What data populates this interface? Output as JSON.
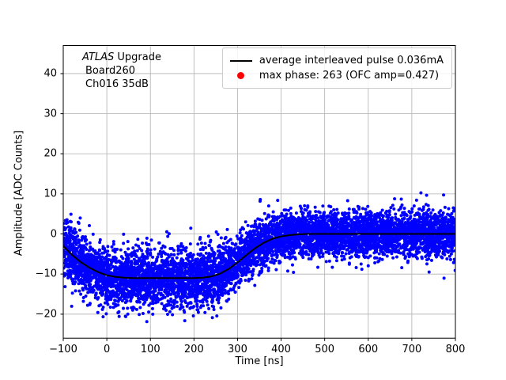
{
  "figure": {
    "background": "#ffffff"
  },
  "chart_data": {
    "type": "scatter",
    "title": "",
    "xlabel": "Time [ns]",
    "ylabel": "Amplitude [ADC Counts]",
    "xlim": [
      -100,
      800
    ],
    "ylim": [
      -26,
      47
    ],
    "xticks": [
      -100,
      0,
      100,
      200,
      300,
      400,
      500,
      600,
      700,
      800
    ],
    "yticks": [
      -20,
      -10,
      0,
      10,
      20,
      30,
      40
    ],
    "grid": true,
    "grid_color": "#b0b0b0",
    "background": "#ffffff",
    "annotation": {
      "line1_italic": "ATLAS",
      "line1_rest": " Upgrade",
      "line2": "Board260",
      "line3": "Ch016 35dB"
    },
    "legend": {
      "position": "upper right",
      "entries": [
        {
          "type": "line",
          "color": "#000000",
          "label": "average interleaved pulse 0.036mA"
        },
        {
          "type": "marker",
          "color": "#ff0000",
          "label": "max phase: 263 (OFC amp=0.427)"
        }
      ]
    },
    "series": [
      {
        "name": "average interleaved pulse",
        "type": "line",
        "color": "#000000",
        "linewidth": 2,
        "x": [
          -100,
          -80,
          -60,
          -40,
          -20,
          0,
          20,
          40,
          60,
          80,
          100,
          120,
          140,
          160,
          180,
          200,
          220,
          240,
          260,
          280,
          300,
          320,
          340,
          360,
          380,
          400,
          420,
          440,
          460,
          480,
          500,
          550,
          600,
          650,
          700,
          750,
          800
        ],
        "y": [
          -3.0,
          -5.2,
          -7.0,
          -8.4,
          -9.5,
          -10.3,
          -10.7,
          -10.9,
          -11.0,
          -11.0,
          -11.0,
          -11.0,
          -11.0,
          -11.0,
          -11.0,
          -11.0,
          -10.9,
          -10.6,
          -9.9,
          -8.7,
          -7.1,
          -5.3,
          -3.6,
          -2.2,
          -1.2,
          -0.6,
          -0.3,
          -0.1,
          0.0,
          0.0,
          0.0,
          0.0,
          0.0,
          0.0,
          0.0,
          0.0,
          0.0
        ]
      },
      {
        "name": "interleaved pulse samples",
        "type": "scatter-generated",
        "color": "#0000ff",
        "marker_radius": 2.0,
        "count": 6800,
        "seed": 1337,
        "noise": {
          "sigma_plateau": 3.6,
          "sigma_tail": 2.9,
          "transition_start": 260,
          "transition_end": 390
        }
      }
    ]
  }
}
